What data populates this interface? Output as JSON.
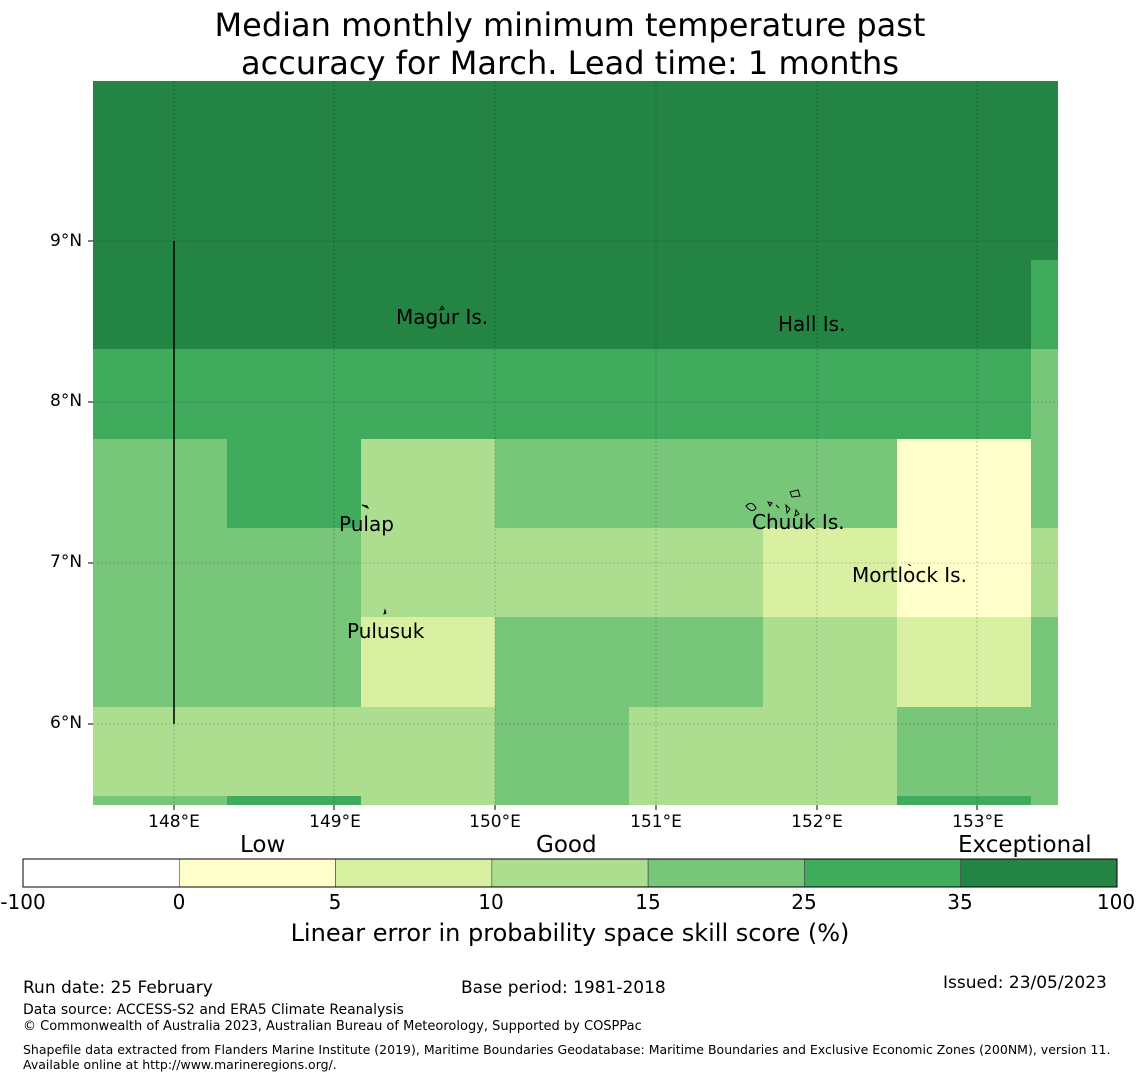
{
  "title": {
    "line1": "Median monthly minimum temperature past",
    "line2": "accuracy for March. Lead time: 1 months"
  },
  "map": {
    "lat_ticks": [
      "9°N",
      "8°N",
      "7°N",
      "6°N"
    ],
    "lon_ticks": [
      "148°E",
      "149°E",
      "150°E",
      "151°E",
      "152°E",
      "153°E"
    ],
    "islands": [
      "Magur Is.",
      "Hall Is.",
      "Pulap",
      "Chuuk Is.",
      "Mortlock Is.",
      "Pulusuk"
    ],
    "colors": {
      "c0": "#ffffff",
      "c1": "#ffffcc",
      "c2": "#d9f0a3",
      "c3": "#addd8e",
      "c4": "#78c679",
      "c5": "#41ab5d",
      "c6": "#238443"
    }
  },
  "colorbar": {
    "categories": [
      "Low",
      "Good",
      "Exceptional"
    ],
    "ticks": [
      "-100",
      "0",
      "5",
      "10",
      "15",
      "25",
      "35",
      "100"
    ],
    "label": "Linear error in probability space skill score (%)"
  },
  "footer": {
    "run_date": "Run date: 25 February",
    "base_period": "Base period: 1981-2018",
    "issued": "Issued: 23/05/2023",
    "data_source": "Data source: ACCESS-S2 and ERA5 Climate Reanalysis",
    "copyright": "© Commonwealth of Australia 2023, Australian Bureau of Meteorology, Supported by COSPPac",
    "shapefile": "Shapefile data extracted from Flanders Marine Institute (2019), Maritime Boundaries Geodatabase: Maritime Boundaries and Exclusive Economic Zones (200NM), version 11. Available online at http://www.marineregions.org/."
  }
}
